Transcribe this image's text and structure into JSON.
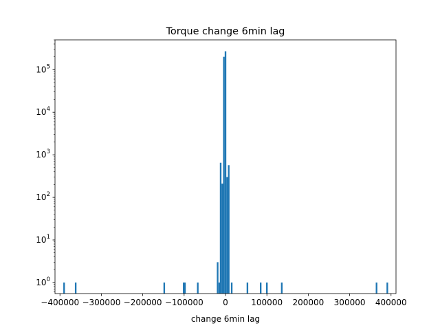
{
  "chart_data": {
    "type": "bar",
    "title": "Torque change 6min lag",
    "xlabel": "change 6min lag",
    "ylabel": "",
    "xlim": [
      -412000,
      412000
    ],
    "ylim": [
      0.55,
      500000
    ],
    "yscale": "log",
    "grid": false,
    "bar_color": "#1f77b4",
    "xticks": [
      {
        "value": -400000,
        "label": "−400000"
      },
      {
        "value": -300000,
        "label": "−300000"
      },
      {
        "value": -200000,
        "label": "−200000"
      },
      {
        "value": -100000,
        "label": "−100000"
      },
      {
        "value": 0,
        "label": "0"
      },
      {
        "value": 100000,
        "label": "100000"
      },
      {
        "value": 200000,
        "label": "200000"
      },
      {
        "value": 300000,
        "label": "300000"
      },
      {
        "value": 400000,
        "label": "400000"
      }
    ],
    "yticks": [
      {
        "value": 1,
        "base": "10",
        "exp": "0"
      },
      {
        "value": 10,
        "base": "10",
        "exp": "1"
      },
      {
        "value": 100,
        "base": "10",
        "exp": "2"
      },
      {
        "value": 1000,
        "base": "10",
        "exp": "3"
      },
      {
        "value": 10000,
        "base": "10",
        "exp": "4"
      },
      {
        "value": 100000,
        "base": "10",
        "exp": "5"
      }
    ],
    "bin_width": 3900,
    "bars": [
      {
        "x": -390000,
        "count": 1
      },
      {
        "x": -362000,
        "count": 1
      },
      {
        "x": -148000,
        "count": 1
      },
      {
        "x": -101000,
        "count": 1
      },
      {
        "x": -98000,
        "count": 1
      },
      {
        "x": -67000,
        "count": 1
      },
      {
        "x": -19000,
        "count": 3
      },
      {
        "x": -15000,
        "count": 1
      },
      {
        "x": -11700,
        "count": 650
      },
      {
        "x": -7800,
        "count": 210
      },
      {
        "x": -3900,
        "count": 200000
      },
      {
        "x": 0,
        "count": 270000
      },
      {
        "x": 3900,
        "count": 300
      },
      {
        "x": 7800,
        "count": 570
      },
      {
        "x": 15000,
        "count": 1
      },
      {
        "x": 53000,
        "count": 1
      },
      {
        "x": 85000,
        "count": 1
      },
      {
        "x": 100000,
        "count": 1
      },
      {
        "x": 136000,
        "count": 1
      },
      {
        "x": 365000,
        "count": 1
      },
      {
        "x": 391000,
        "count": 1
      }
    ]
  }
}
